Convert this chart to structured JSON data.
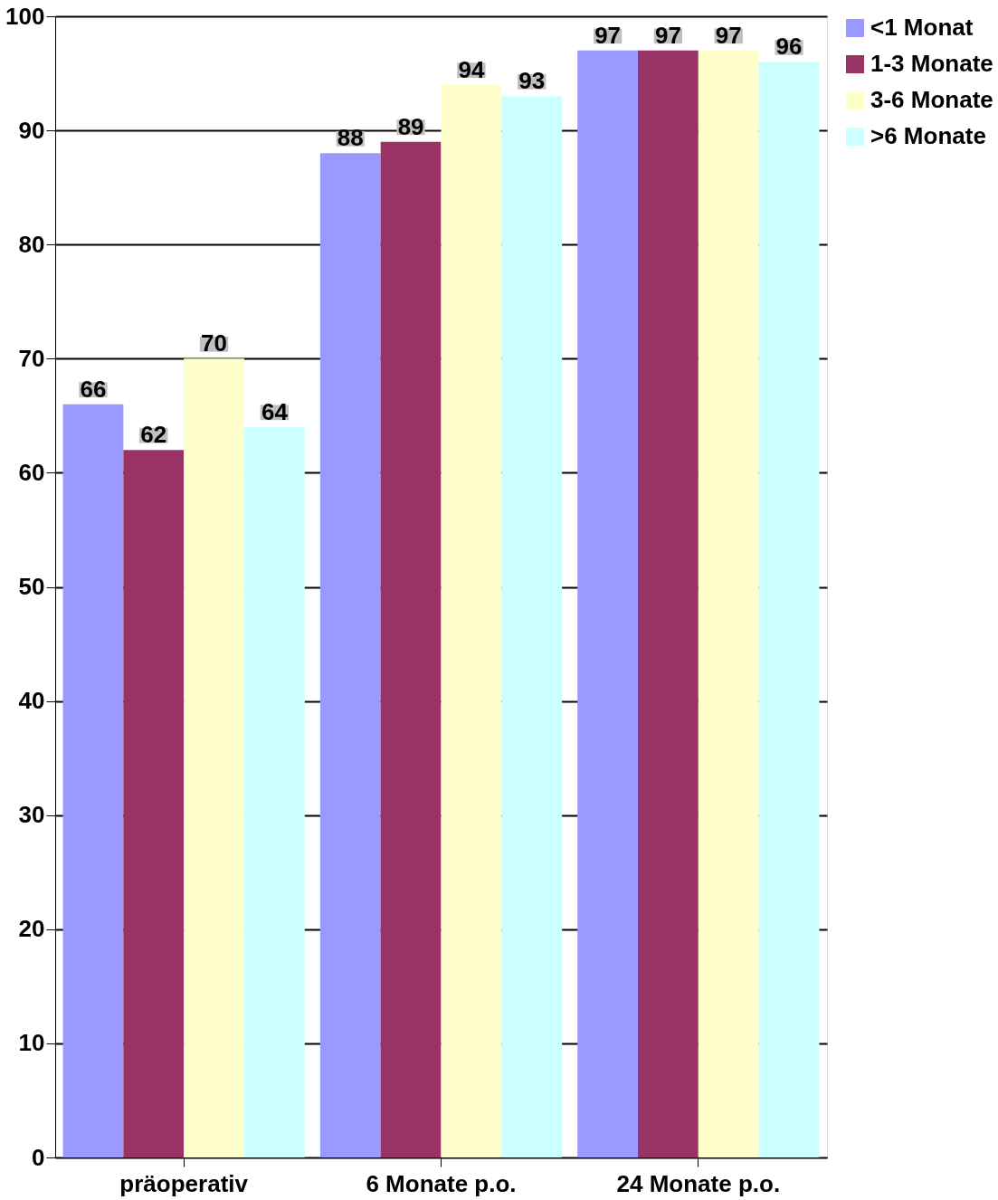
{
  "chart_data": {
    "type": "bar",
    "categories": [
      "präoperativ",
      "6 Monate p.o.",
      "24 Monate p.o."
    ],
    "series": [
      {
        "name": "<1 Monat",
        "color": "#9999ff",
        "values": [
          66,
          88,
          97
        ]
      },
      {
        "name": "1-3 Monate",
        "color": "#993366",
        "values": [
          62,
          89,
          97
        ]
      },
      {
        "name": "3-6 Monate",
        "color": "#ffffcc",
        "values": [
          70,
          94,
          97
        ]
      },
      {
        "name": ">6 Monate",
        "color": "#ccffff",
        "values": [
          64,
          93,
          96
        ]
      }
    ],
    "ylim": [
      0,
      100
    ],
    "yticks": [
      0,
      10,
      20,
      30,
      40,
      50,
      60,
      70,
      80,
      90,
      100
    ],
    "grid": "y",
    "legend": "right",
    "data_labels": true
  }
}
